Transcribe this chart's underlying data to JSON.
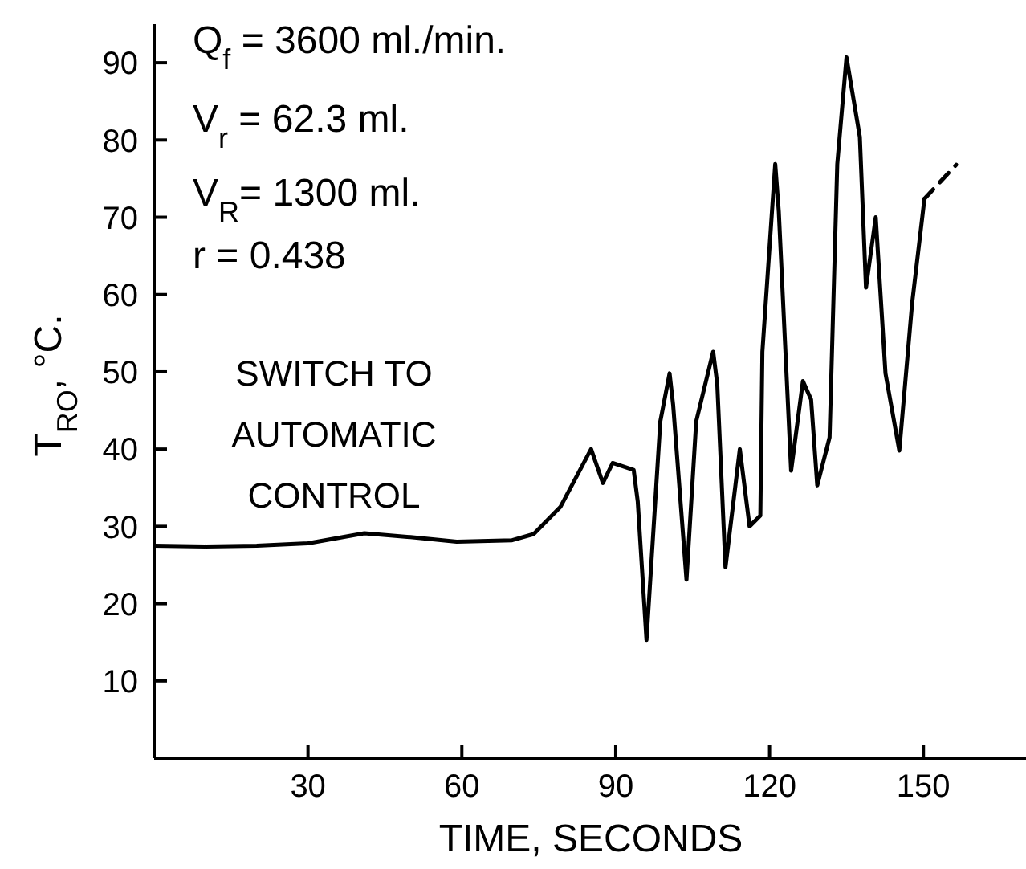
{
  "chart_data": {
    "type": "line",
    "xlabel": "TIME, SECONDS",
    "ylabel": "T$_{RO}$, °C.",
    "annotations": [
      "Q$_{f}$ = 3600 ml./min.",
      "V$_{r}$ = 62.3 ml.",
      "V$_{R}$= 1300 ml.",
      "r  = 0.438",
      "SWITCH TO AUTOMATIC CONTROL"
    ],
    "xlim": [
      0,
      170
    ],
    "xticks": [
      30,
      60,
      90,
      120,
      150
    ],
    "ylim": [
      0,
      95
    ],
    "yticks": [
      10,
      20,
      30,
      40,
      50,
      60,
      70,
      80,
      90
    ],
    "marker": "none",
    "series": [
      {
        "color": "#000000",
        "line_style": "solid",
        "x": [
          0,
          10,
          20,
          30,
          41,
          50,
          59,
          63.6,
          69.8,
          74,
          79.2,
          85.2,
          87.5,
          89.4,
          93.5,
          94.3,
          96,
          98.7,
          100.5,
          101.2,
          103.8,
          105.7,
          109,
          109.8,
          111.4,
          114.2,
          116.1,
          118.2,
          118.6,
          121.1,
          121.8,
          124.2,
          126.5,
          128.1,
          129.3,
          131.7,
          133.2,
          135,
          137.6,
          138.8,
          140.7,
          142.6,
          145.3,
          147.8,
          150.2
        ],
        "values": [
          27.5,
          27.4,
          27.5,
          27.8,
          29.1,
          28.6,
          28,
          28.1,
          28.2,
          29,
          32.5,
          40,
          35.6,
          38.2,
          37.3,
          33.2,
          15.3,
          43.6,
          49.8,
          45.7,
          23.1,
          43.6,
          52.6,
          48.4,
          24.7,
          40,
          30,
          31.4,
          52.6,
          76.9,
          70.7,
          37.2,
          48.8,
          46.4,
          35.3,
          41.5,
          76.9,
          90.7,
          80.4,
          60.9,
          70,
          49.8,
          39.8,
          58.9,
          72.4
        ]
      },
      {
        "color": "#000000",
        "line_style": "dashed",
        "x": [
          150.2,
          156.4
        ],
        "values": [
          72.4,
          76.8
        ]
      }
    ]
  }
}
